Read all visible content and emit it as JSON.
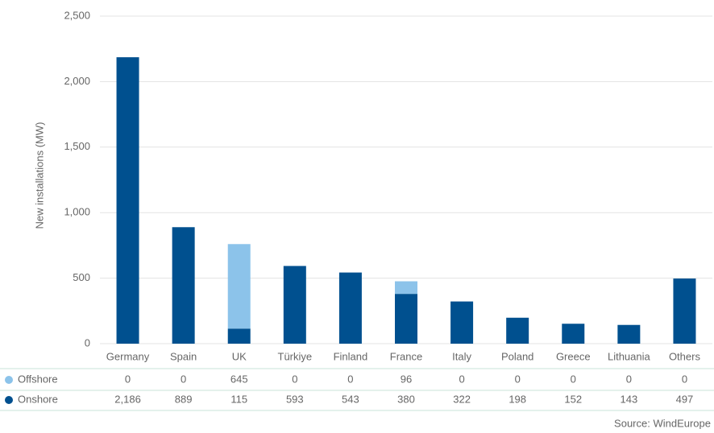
{
  "chart_data": {
    "type": "bar",
    "stacked": true,
    "y_label": "New installations (MW)",
    "source": "Source: WindEurope",
    "categories": [
      "Germany",
      "Spain",
      "UK",
      "Türkiye",
      "Finland",
      "France",
      "Italy",
      "Poland",
      "Greece",
      "Lithuania",
      "Others"
    ],
    "series": [
      {
        "name": "Offshore",
        "color": "#8cc3ea",
        "values": [
          0,
          0,
          645,
          0,
          0,
          96,
          0,
          0,
          0,
          0,
          0
        ]
      },
      {
        "name": "Onshore",
        "color": "#00508f",
        "values": [
          2186,
          889,
          115,
          593,
          543,
          380,
          322,
          198,
          152,
          143,
          497
        ],
        "value_labels": [
          "2,186",
          "889",
          "115",
          "593",
          "543",
          "380",
          "322",
          "198",
          "152",
          "143",
          "497"
        ]
      }
    ],
    "ylim": [
      0,
      2500
    ],
    "yticks": [
      0,
      500,
      {
        "value": 1000,
        "label": "1,000"
      },
      {
        "value": 1500,
        "label": "1,500"
      },
      {
        "value": 2000,
        "label": "2,000"
      },
      {
        "value": 2500,
        "label": "2,500"
      }
    ],
    "grid": true
  }
}
